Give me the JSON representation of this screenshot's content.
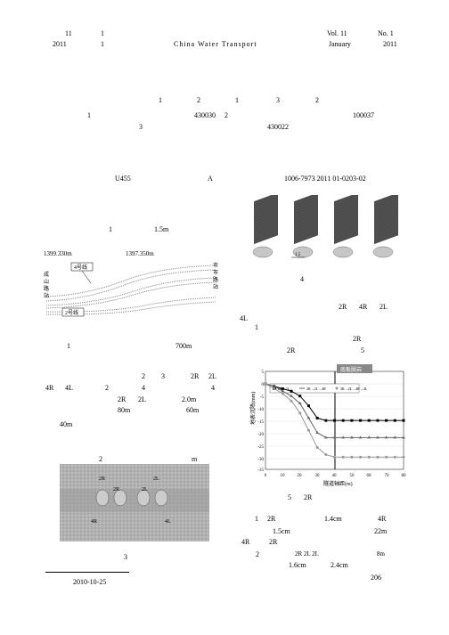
{
  "header": {
    "top_left_1": "11",
    "top_left_2": "1",
    "vol": "Vol. 11",
    "no": "No. 1",
    "year_left_1": "2011",
    "year_left_2": "1",
    "journal": "China Water Transport",
    "month": "January",
    "year_right": "2011"
  },
  "authors": {
    "a1": "1",
    "a2": "2",
    "a3": "1",
    "a4": "3",
    "a5": "2",
    "aff1_num": "1",
    "aff1_code": "430030",
    "aff2_num": "2",
    "aff2_code": "100037",
    "aff3_num": "3",
    "aff3_code": "430022"
  },
  "codes": {
    "classnum": "U455",
    "doccode": "A",
    "artid": "1006-7973  2011  01-0203-02"
  },
  "fig1": {
    "left_num": "1",
    "depth": "1.5m",
    "elev_left": "1399.330m",
    "elev_right": "1397.350m",
    "line4": "4号线",
    "line2": "2号线",
    "y_top": "市",
    "y_2": "市",
    "y_3": "路",
    "y_4": "站",
    "left_1": "成",
    "left_2": "山",
    "left_3": "路",
    "left_4": "站",
    "cap_num": "1",
    "cap_dist": "700m"
  },
  "tunnels": {
    "t_2R": "2R",
    "t_4R": "4R",
    "t_2L": "2L",
    "t_4L": "4L",
    "n1": "1",
    "n2": "2",
    "n3": "2",
    "n4": "3",
    "n5": "2R",
    "n6": "2L",
    "p_4R": "4R",
    "p_4L": "4L",
    "p_2": "2",
    "p_4": "4",
    "p_4b": "4",
    "p_2R": "2R",
    "p_2L": "2L",
    "d_80m": "80m",
    "d_2m": "2.0m",
    "d_60m": "60m",
    "d_40m": "40m"
  },
  "fig3": {
    "label_2R_a": "2R",
    "label_2L_a": "2L",
    "label_2R_b": "2R",
    "label_2L_b": "2L",
    "label_4R": "4R",
    "label_4L": "4L",
    "cap_2": "2",
    "cap_m": "m",
    "cap_3": "3"
  },
  "fig4": {
    "spacing": "1.5",
    "cap": "4"
  },
  "right_text": {
    "r_4L": "4L",
    "r_1": "1",
    "r_2R_a": "2R",
    "r_2R_b": "2R",
    "r_5": "5"
  },
  "chart": {
    "legend_1": "2R→2L",
    "legend_2": "2R→2L→4R",
    "legend_3": "2R→2L→4R→4L",
    "callout": "底板脱岩",
    "ylabel": "地表沉降(mm)",
    "xlabel": "隧道轴距(m)",
    "x_ticks": [
      0,
      10,
      20,
      30,
      40,
      50,
      60,
      70,
      80
    ],
    "y_ticks": [
      -35,
      -30,
      -25,
      -20,
      -15,
      -10,
      -5,
      0,
      5
    ],
    "series": {
      "s1": {
        "color": "#000000",
        "values": [
          0,
          -1,
          -2,
          -3,
          -5,
          -9,
          -14,
          -15,
          -15,
          -15,
          -15,
          -15,
          -15,
          -15,
          -15,
          -15,
          -15
        ]
      },
      "s2": {
        "color": "#666666",
        "values": [
          0,
          -1,
          -3,
          -5,
          -8,
          -14,
          -20,
          -22,
          -22,
          -22,
          -22,
          -22,
          -22,
          -22,
          -22,
          -22,
          -22
        ]
      },
      "s3": {
        "color": "#999999",
        "values": [
          0,
          -2,
          -4,
          -7,
          -12,
          -19,
          -26,
          -29,
          -30,
          -30,
          -30,
          -30,
          -30,
          -30,
          -30,
          -30,
          -30
        ]
      }
    },
    "cap_num": "5",
    "cap_tun": "2R"
  },
  "results": {
    "r1_1": "1",
    "r1_2R": "2R",
    "r1_14cm": "1.4cm",
    "r1_4R": "4R",
    "r2_15cm": "1.5cm",
    "r2_22m": "22m",
    "r3_4R": "4R",
    "r3_2R": "2R",
    "r4_2": "2",
    "r4_seq": "2R    2L    2L",
    "r4_8m": "8m",
    "r5_16cm": "1.6cm",
    "r5_24cm": "2.4cm",
    "page": "206"
  },
  "footer": {
    "date": "2010-10-25"
  }
}
